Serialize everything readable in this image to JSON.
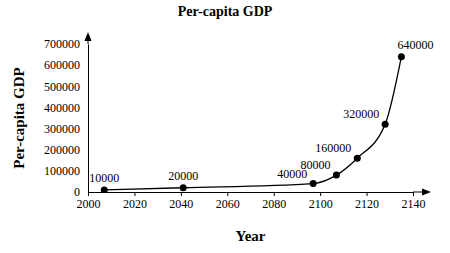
{
  "chart_data": {
    "type": "line",
    "title": "Per-capita GDP",
    "x_label": "Year",
    "y_label": "Per-capita GDP",
    "x": [
      2007,
      2041,
      2097,
      2107,
      2116,
      2128,
      2135
    ],
    "values": [
      10000,
      20000,
      40000,
      80000,
      160000,
      320000,
      640000
    ],
    "color": "#000000",
    "marker": "circle",
    "line_style": "solid",
    "xlim": [
      2000,
      2140
    ],
    "xticks": [
      2000,
      2020,
      2040,
      2060,
      2080,
      2100,
      2120,
      2140
    ],
    "ylim": [
      0,
      700000
    ],
    "yticks": [
      0,
      100000,
      200000,
      300000,
      400000,
      500000,
      600000,
      700000
    ],
    "data_labels": true,
    "grid": false
  }
}
